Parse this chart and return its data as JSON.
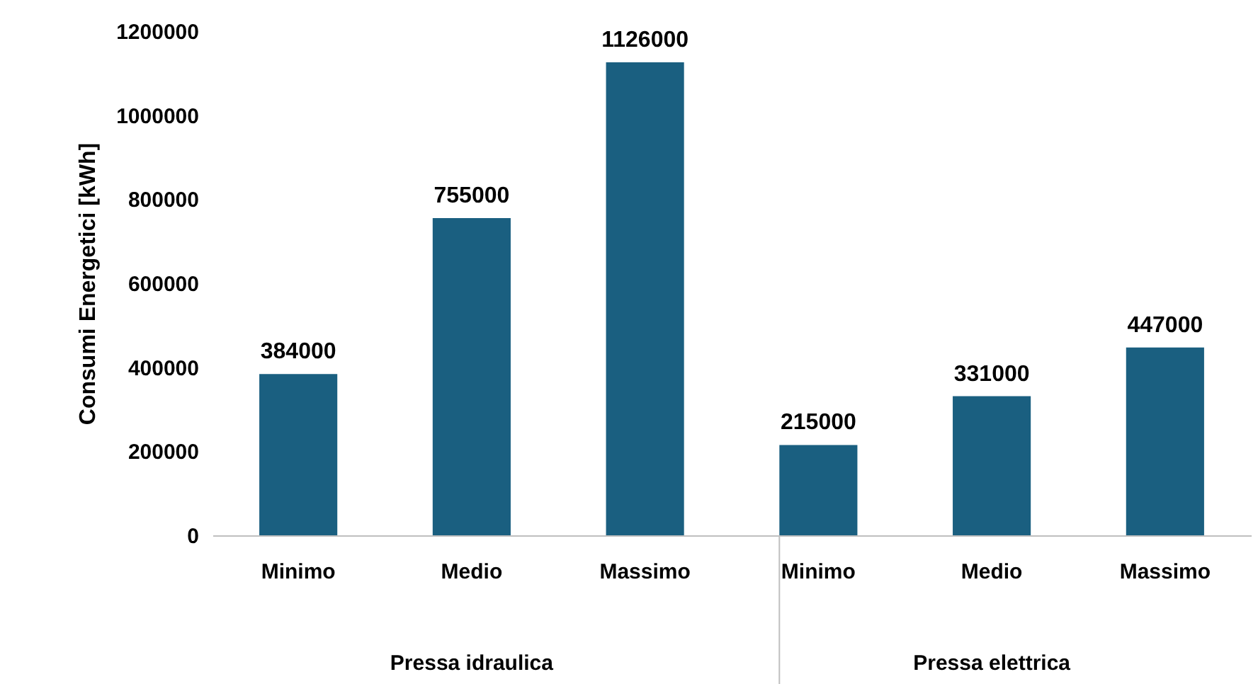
{
  "chart_data": {
    "type": "bar",
    "ylabel": "Consumi Energetici [kWh]",
    "categories": [
      "Minimo",
      "Medio",
      "Massimo",
      "Minimo",
      "Medio",
      "Massimo"
    ],
    "values": [
      384000,
      755000,
      1126000,
      215000,
      331000,
      447000
    ],
    "color": "#1a5f80",
    "ylim": [
      0,
      1200000
    ],
    "yticks": [
      0,
      200000,
      400000,
      600000,
      800000,
      1000000,
      1200000
    ],
    "grid": false,
    "data_labels": true,
    "annotations": [
      "Pressa idraulica",
      "Pressa elettrica"
    ]
  }
}
